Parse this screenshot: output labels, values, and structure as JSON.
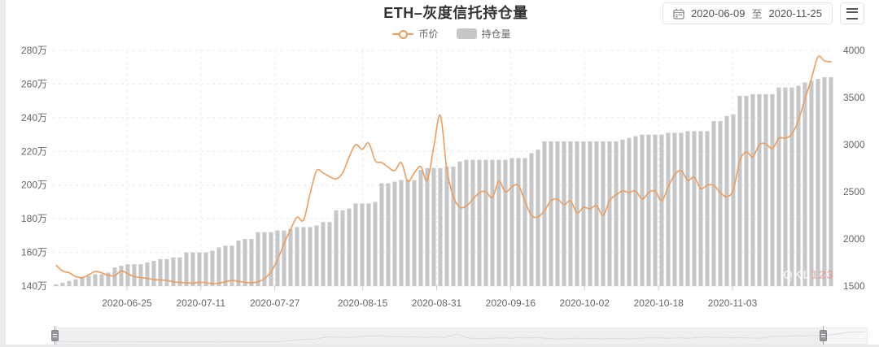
{
  "page": {
    "title": "ETH–灰度信托持仓量",
    "watermark_primary": "QKL",
    "watermark_accent": "123"
  },
  "controls": {
    "start_date": "2020-06-09",
    "separator": "至",
    "end_date": "2020-11-25"
  },
  "legend": [
    {
      "label": "币价",
      "marker": "line",
      "color": "#EE9D5C"
    },
    {
      "label": "持仓量",
      "marker": "bar",
      "color": "#C6C7C9"
    }
  ],
  "chart_data": {
    "type": "bar+line",
    "title": "ETH–灰度信托持仓量",
    "legend_position": "top",
    "grid": "dashed",
    "x_start": "2020-06-09",
    "x_end": "2020-11-25",
    "x_tick_labels": [
      "2020-06-25",
      "2020-07-11",
      "2020-07-27",
      "2020-08-15",
      "2020-08-31",
      "2020-09-16",
      "2020-10-02",
      "2020-10-18",
      "2020-11-03"
    ],
    "y_left": {
      "unit": "万",
      "min": 140,
      "max": 280,
      "step": 20,
      "ticks": [
        "140万",
        "160万",
        "180万",
        "200万",
        "220万",
        "240万",
        "260万",
        "280万"
      ]
    },
    "y_right": {
      "min": 1500,
      "max": 4000,
      "step": 500,
      "ticks": [
        1500,
        2000,
        2500,
        3000,
        3500,
        4000
      ]
    },
    "series": [
      {
        "name": "持仓量",
        "type": "bar",
        "axis": "left",
        "unit": "万",
        "color": "#C6C7C9",
        "values": [
          141,
          142,
          143,
          144,
          145,
          146,
          147,
          147,
          148,
          151,
          152,
          153,
          153,
          153,
          154,
          155,
          156,
          156,
          157,
          157,
          160,
          160,
          160,
          160,
          161,
          163,
          164,
          164,
          167,
          168,
          168,
          172,
          172,
          172,
          173,
          173,
          174,
          175,
          175,
          175,
          176,
          178,
          178,
          185,
          185,
          186,
          189,
          189,
          189,
          190,
          201,
          201,
          202,
          203,
          203,
          203,
          209,
          210,
          210,
          210,
          211,
          211,
          214,
          215,
          215,
          215,
          215,
          215,
          215,
          215,
          216,
          216,
          216,
          219,
          221,
          226,
          226,
          226,
          226,
          226,
          226,
          226,
          226,
          226,
          226,
          226,
          226,
          227,
          228,
          229,
          230,
          230,
          230,
          230,
          231,
          231,
          231,
          232,
          232,
          232,
          232,
          238,
          238,
          241,
          242,
          253,
          253,
          254,
          254,
          254,
          254,
          258,
          258,
          258,
          259,
          261,
          262,
          263,
          264,
          264
        ]
      },
      {
        "name": "币价",
        "type": "line",
        "axis": "right",
        "color": "#EE9D5C",
        "values": [
          1720,
          1660,
          1640,
          1600,
          1590,
          1620,
          1655,
          1640,
          1615,
          1610,
          1660,
          1630,
          1600,
          1590,
          1580,
          1570,
          1565,
          1560,
          1545,
          1540,
          1535,
          1530,
          1540,
          1535,
          1525,
          1530,
          1545,
          1560,
          1550,
          1540,
          1535,
          1545,
          1580,
          1650,
          1780,
          1950,
          2100,
          2230,
          2200,
          2480,
          2724,
          2700,
          2660,
          2638,
          2700,
          2870,
          3000,
          2950,
          3017,
          2830,
          2810,
          2760,
          2724,
          2810,
          2612,
          2700,
          2767,
          2621,
          2980,
          3310,
          2741,
          2450,
          2336,
          2350,
          2420,
          2491,
          2500,
          2440,
          2612,
          2500,
          2552,
          2569,
          2400,
          2250,
          2233,
          2300,
          2405,
          2422,
          2362,
          2405,
          2276,
          2336,
          2319,
          2353,
          2250,
          2405,
          2466,
          2509,
          2491,
          2509,
          2422,
          2491,
          2509,
          2405,
          2550,
          2681,
          2724,
          2621,
          2655,
          2534,
          2569,
          2569,
          2491,
          2448,
          2520,
          2828,
          2922,
          2870,
          3000,
          3009,
          2957,
          3069,
          3069,
          3112,
          3259,
          3483,
          3700,
          3931,
          3888,
          3879
        ]
      }
    ]
  }
}
